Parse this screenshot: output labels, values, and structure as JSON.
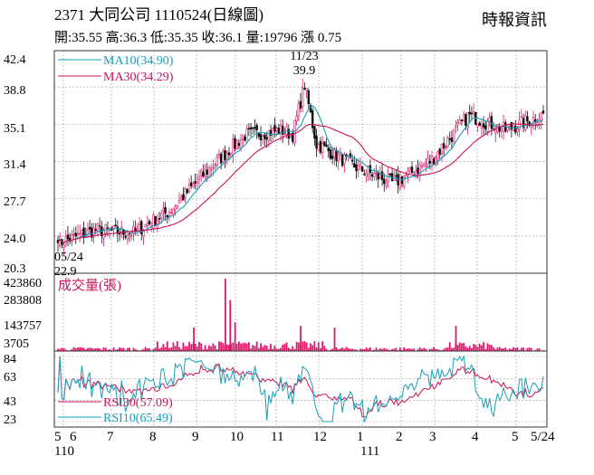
{
  "header": {
    "title": "2371  大同公司 1110524(日線圖)",
    "source": "時報資訊",
    "quote_line": "開:35.55 高:36.3 低:35.35 收:36.1 量:19796 漲 0.75"
  },
  "colors": {
    "up": "#e0186c",
    "down": "#111111",
    "ma10": "#1a9fb6",
    "ma30": "#c8145a",
    "rsi30": "#c8145a",
    "rsi10": "#1a9fb6",
    "volume": "#e0186c",
    "grid": "#999999"
  },
  "chart_data": [
    {
      "type": "candlestick",
      "panel": "price",
      "y_ticks": [
        "42.4",
        "38.8",
        "35.1",
        "31.4",
        "27.7",
        "24.0",
        "20.3"
      ],
      "ylim": [
        20.3,
        42.4
      ],
      "legend": [
        {
          "name": "MA10",
          "label": "MA10(34.90)",
          "color": "#1a9fb6"
        },
        {
          "name": "MA30",
          "label": "MA30(34.29)",
          "color": "#c8145a"
        }
      ],
      "annotations": [
        {
          "date": "11/23",
          "label_date": "11/23",
          "label_value": "39.9",
          "position": "high"
        },
        {
          "date": "05/24",
          "label_date": "05/24",
          "label_value": "22.9",
          "position": "low"
        }
      ],
      "anchors": [
        {
          "month": "2021-05",
          "close": 23.3
        },
        {
          "month": "2021-06",
          "close": 24.6
        },
        {
          "month": "2021-07",
          "close": 24.3
        },
        {
          "month": "2021-08",
          "close": 26.5
        },
        {
          "month": "2021-09",
          "close": 30.5
        },
        {
          "month": "2021-10",
          "close": 34.0
        },
        {
          "month": "2021-11",
          "close": 34.5
        },
        {
          "month": "2021-12",
          "close": 33.0
        },
        {
          "month": "2022-01",
          "close": 30.8
        },
        {
          "month": "2022-02",
          "close": 29.2
        },
        {
          "month": "2022-03",
          "close": 31.5
        },
        {
          "month": "2022-04",
          "close": 36.0
        },
        {
          "month": "2022-05",
          "close": 34.5
        },
        {
          "month": "2022-05-24",
          "close": 36.1
        }
      ]
    },
    {
      "type": "bar",
      "panel": "volume",
      "label": "成交量(張)",
      "y_ticks": [
        "423860",
        "283808",
        "143757",
        "3705"
      ],
      "ylim": [
        3705,
        423860
      ],
      "spikes": [
        {
          "date": "2021-09",
          "value": 423860
        },
        {
          "date": "2021-09",
          "value": 300000
        },
        {
          "date": "2021-11",
          "value": 180000
        },
        {
          "date": "2022-04",
          "value": 150000
        }
      ]
    },
    {
      "type": "line",
      "panel": "rsi",
      "y_ticks": [
        "84",
        "63",
        "43",
        "23"
      ],
      "ylim": [
        23,
        84
      ],
      "legend": [
        {
          "name": "RSI30",
          "label": "RSI30(57.09)",
          "color": "#c8145a"
        },
        {
          "name": "RSI10",
          "label": "RSI10(65.49)",
          "color": "#1a9fb6"
        }
      ]
    },
    {
      "type": "axis",
      "x_tick_labels": [
        "5",
        "6",
        "7",
        "8",
        "9",
        "10",
        "11",
        "12",
        "1",
        "2",
        "3",
        "4",
        "5",
        "5/24"
      ],
      "x_period_labels": [
        {
          "label": "110",
          "under": "5"
        },
        {
          "label": "111",
          "under": "1"
        }
      ]
    }
  ]
}
